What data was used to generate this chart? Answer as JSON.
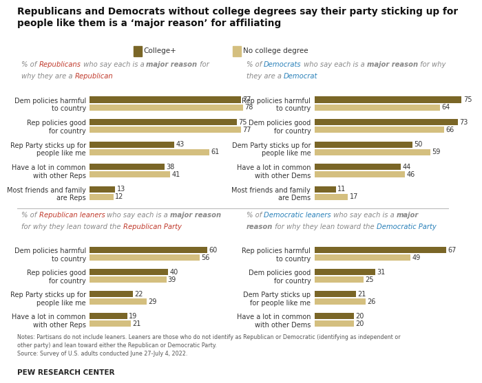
{
  "title": "Republicans and Democrats without college degrees say their party sticking up for\npeople like them is a ‘major reason’ for affiliating",
  "legend_college": "College+",
  "legend_nocollege": "No college degree",
  "color_college": "#7a6627",
  "color_nocollege": "#d4bf7f",
  "bg": "#ffffff",
  "panel_tl": {
    "subtitle": [
      {
        "text": "% of ",
        "bold": false,
        "color": "#888888"
      },
      {
        "text": "Republicans",
        "bold": false,
        "color": "#c0392b"
      },
      {
        "text": " who say each is a ",
        "bold": false,
        "color": "#888888"
      },
      {
        "text": "major reason",
        "bold": true,
        "color": "#888888"
      },
      {
        "text": " for\nwhy they are a ",
        "bold": false,
        "color": "#888888"
      },
      {
        "text": "Republican",
        "bold": false,
        "color": "#c0392b"
      }
    ],
    "categories": [
      "Dem policies harmful\nto country",
      "Rep policies good\nfor country",
      "Rep Party sticks up for\npeople like me",
      "Have a lot in common\nwith other Reps",
      "Most friends and family\nare Reps"
    ],
    "college": [
      77,
      75,
      43,
      38,
      13
    ],
    "nocollege": [
      78,
      77,
      61,
      41,
      12
    ]
  },
  "panel_tr": {
    "subtitle": [
      {
        "text": "% of ",
        "bold": false,
        "color": "#888888"
      },
      {
        "text": "Democrats",
        "bold": false,
        "color": "#2980b9"
      },
      {
        "text": " who say each is a ",
        "bold": false,
        "color": "#888888"
      },
      {
        "text": "major reason",
        "bold": true,
        "color": "#888888"
      },
      {
        "text": " for why\nthey are a ",
        "bold": false,
        "color": "#888888"
      },
      {
        "text": "Democrat",
        "bold": false,
        "color": "#2980b9"
      }
    ],
    "categories": [
      "Rep policies harmful\nto country",
      "Dem policies good\nfor country",
      "Dem Party sticks up for\npeople like me",
      "Have a lot in common\nwith other Dems",
      "Most friends and family\nare Dems"
    ],
    "college": [
      75,
      73,
      50,
      44,
      11
    ],
    "nocollege": [
      64,
      66,
      59,
      46,
      17
    ]
  },
  "panel_bl": {
    "subtitle": [
      {
        "text": "% of ",
        "bold": false,
        "color": "#888888"
      },
      {
        "text": "Republican leaners",
        "bold": false,
        "color": "#c0392b"
      },
      {
        "text": " who say each is a ",
        "bold": false,
        "color": "#888888"
      },
      {
        "text": "major reason\n",
        "bold": true,
        "color": "#888888"
      },
      {
        "text": "for why they lean toward the ",
        "bold": false,
        "color": "#888888"
      },
      {
        "text": "Republican Party",
        "bold": false,
        "color": "#c0392b"
      }
    ],
    "categories": [
      "Dem policies harmful\nto country",
      "Rep policies good\nfor country",
      "Rep Party sticks up for\npeople like me",
      "Have a lot in common\nwith other Reps"
    ],
    "college": [
      60,
      40,
      22,
      19
    ],
    "nocollege": [
      56,
      39,
      29,
      21
    ]
  },
  "panel_br": {
    "subtitle": [
      {
        "text": "% of ",
        "bold": false,
        "color": "#888888"
      },
      {
        "text": "Democratic leaners",
        "bold": false,
        "color": "#2980b9"
      },
      {
        "text": " who say each is a ",
        "bold": false,
        "color": "#888888"
      },
      {
        "text": "major\nreason",
        "bold": true,
        "color": "#888888"
      },
      {
        "text": " for why they lean toward the ",
        "bold": false,
        "color": "#888888"
      },
      {
        "text": "Democratic Party",
        "bold": false,
        "color": "#2980b9"
      }
    ],
    "categories": [
      "Rep policies harmful\nto country",
      "Dem policies good\nfor country",
      "Dem Party sticks up\nfor people like me",
      "Have a lot in common\nwith other Dems"
    ],
    "college": [
      67,
      31,
      21,
      20
    ],
    "nocollege": [
      49,
      25,
      26,
      20
    ]
  },
  "notes_line1": "Notes: Partisans do not include leaners. Leaners are those who do not identify as Republican or Democratic (identifying as independent or",
  "notes_line2": "other party) and lean toward either the Republican or Democratic Party.",
  "notes_line3": "Source: Survey of U.S. adults conducted June 27-July 4, 2022.",
  "source": "PEW RESEARCH CENTER"
}
